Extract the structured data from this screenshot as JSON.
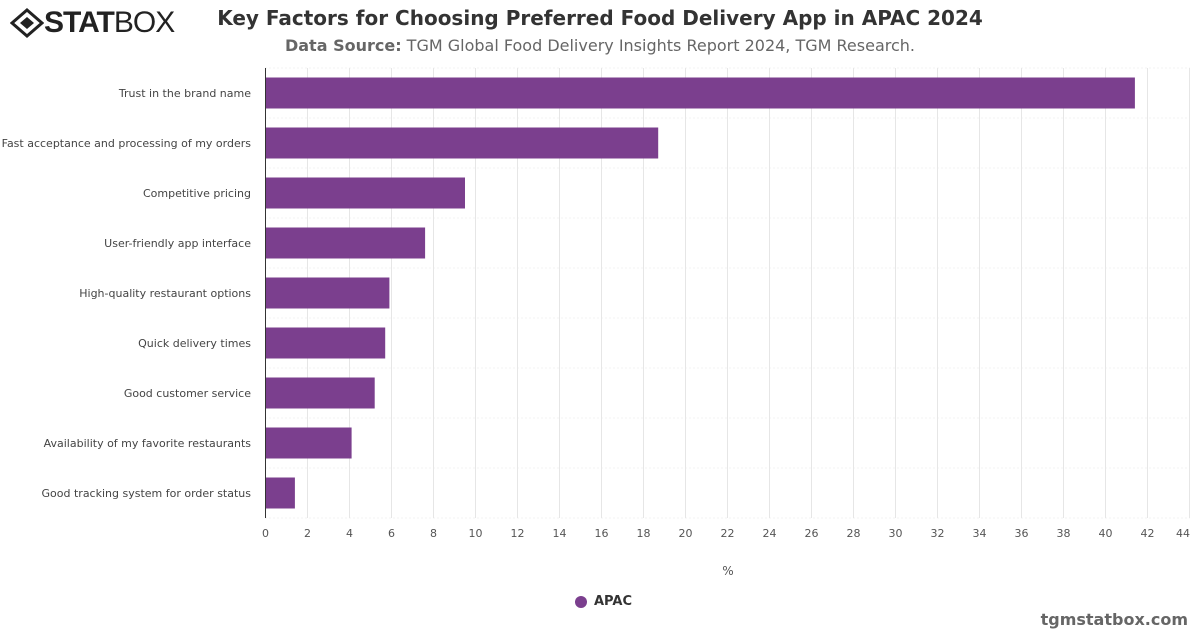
{
  "logo": {
    "text_bold": "STAT",
    "text_light": "BOX"
  },
  "header": {
    "title": "Key Factors for Choosing Preferred Food Delivery App in APAC 2024",
    "source_label": "Data Source:",
    "source_text": " TGM Global Food Delivery Insights Report 2024, TGM Research."
  },
  "footer": {
    "credit": "tgmstatbox.com"
  },
  "chart_data": {
    "type": "bar",
    "orientation": "horizontal",
    "title": "Key Factors for Choosing Preferred Food Delivery App in APAC 2024",
    "xlabel": "%",
    "categories": [
      "Trust in the brand name",
      "Fast acceptance and processing of my orders",
      "Competitive pricing",
      "User-friendly app interface",
      "High-quality restaurant options",
      "Quick delivery times",
      "Good customer service",
      "Availability of my favorite restaurants",
      "Good tracking system for order status"
    ],
    "series": [
      {
        "name": "APAC",
        "values": [
          41.4,
          18.7,
          9.5,
          7.6,
          5.9,
          5.7,
          5.2,
          4.1,
          1.4
        ],
        "color": "#7b3f8e"
      }
    ],
    "xlim": [
      0,
      44
    ],
    "xticks": [
      "0",
      "2",
      "4",
      "6",
      "8",
      "10",
      "12",
      "14",
      "16",
      "18",
      "20",
      "22",
      "24",
      "26",
      "28",
      "30",
      "32",
      "34",
      "36",
      "38",
      "40",
      "42",
      "44"
    ],
    "grid": true,
    "legend": "bottom-center"
  }
}
